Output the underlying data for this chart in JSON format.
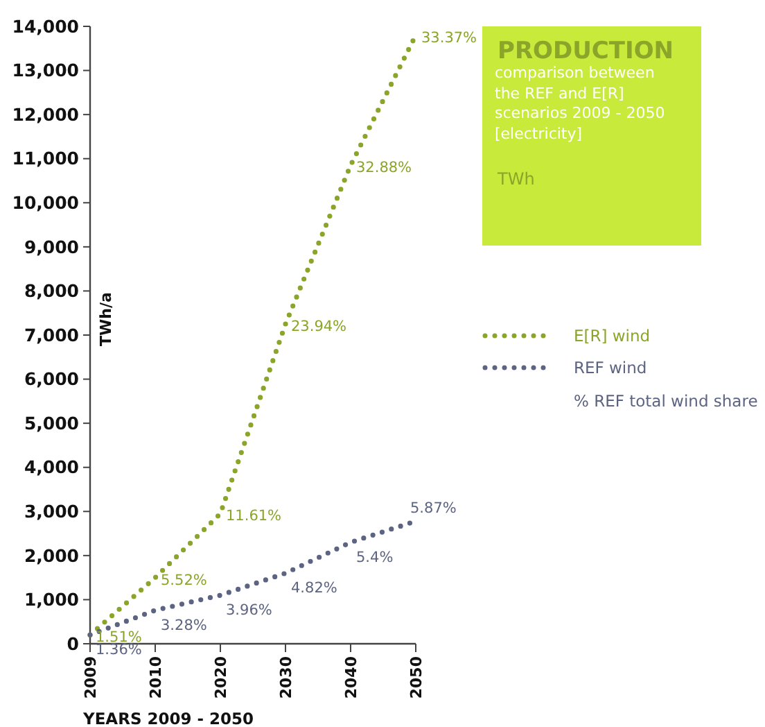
{
  "chart_data": {
    "type": "line",
    "title": "PRODUCTION",
    "subtitle": "comparison between the REF and E[R] scenarios 2009 - 2050 [electricity]",
    "annotations": [
      "TWh",
      "% REF total wind share",
      {
        "text": "1.51%",
        "x": "2009",
        "y": 200
      },
      {
        "text": "5.52%",
        "x": "2010",
        "y": 1500
      },
      {
        "text": "11.61%",
        "x": "2020",
        "y": 2950
      },
      {
        "text": "23.94%",
        "x": "2030",
        "y": 7250
      },
      {
        "text": "32.88%",
        "x": "2040",
        "y": 10850
      },
      {
        "text": "33.37%",
        "x": "2050",
        "y": 13800
      },
      {
        "text": "1.36%",
        "x": "2009",
        "y": 200
      },
      {
        "text": "3.28%",
        "x": "2010",
        "y": 760
      },
      {
        "text": "3.96%",
        "x": "2020",
        "y": 1100
      },
      {
        "text": "4.82%",
        "x": "2030",
        "y": 1600
      },
      {
        "text": "5.4%",
        "x": "2040",
        "y": 2300
      },
      {
        "text": "5.87%",
        "x": "2050",
        "y": 2780
      }
    ],
    "xlabel": "YEARS 2009 - 2050",
    "ylabel": "TWh/a",
    "categories": [
      "2009",
      "2010",
      "2020",
      "2030",
      "2040",
      "2050"
    ],
    "ylim": [
      0,
      14000
    ],
    "yticks": [
      {
        "value": 0,
        "label": "0"
      },
      {
        "value": 1000,
        "label": "1,000"
      },
      {
        "value": 2000,
        "label": "2,000"
      },
      {
        "value": 3000,
        "label": "3,000"
      },
      {
        "value": 4000,
        "label": "4,000"
      },
      {
        "value": 5000,
        "label": "5,000"
      },
      {
        "value": 6000,
        "label": "6,000"
      },
      {
        "value": 7000,
        "label": "7,000"
      },
      {
        "value": 8000,
        "label": "8,000"
      },
      {
        "value": 9000,
        "label": "9,000"
      },
      {
        "value": 10000,
        "label": "10,000"
      },
      {
        "value": 11000,
        "label": "11,000"
      },
      {
        "value": 12000,
        "label": "12,000"
      },
      {
        "value": 13000,
        "label": "13,000"
      },
      {
        "value": 14000,
        "label": "14,000"
      }
    ],
    "grid": false,
    "legend": "right",
    "marker": "none",
    "line_style": "dotted",
    "series": [
      {
        "name": "E[R] wind",
        "color": "#8aa52a",
        "values": [
          200,
          1500,
          2950,
          7250,
          10850,
          13800
        ]
      },
      {
        "name": "REF wind",
        "color": "#5c6482",
        "values": [
          200,
          760,
          1100,
          1600,
          2300,
          2780
        ]
      }
    ]
  }
}
